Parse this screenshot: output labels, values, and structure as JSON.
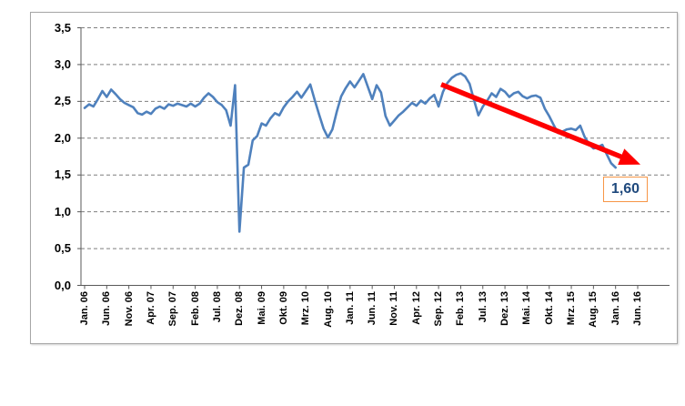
{
  "annotation": {
    "label": "1,60"
  },
  "chart_data": {
    "type": "line",
    "title": "",
    "grid": "dashed-horizontal",
    "legend": "none",
    "ylim": [
      0,
      3.5
    ],
    "y_ticks": [
      {
        "value": 0.0,
        "label": "0,0"
      },
      {
        "value": 0.5,
        "label": "0,5"
      },
      {
        "value": 1.0,
        "label": "1,0"
      },
      {
        "value": 1.5,
        "label": "1,5"
      },
      {
        "value": 2.0,
        "label": "2,0"
      },
      {
        "value": 2.5,
        "label": "2,5"
      },
      {
        "value": 3.0,
        "label": "3,0"
      },
      {
        "value": 3.5,
        "label": "3,5"
      }
    ],
    "x_tick_interval_months": 5,
    "x_tick_labels": [
      "Jan. 06",
      "Jun. 06",
      "Nov. 06",
      "Apr. 07",
      "Sep. 07",
      "Feb. 08",
      "Jul. 08",
      "Dez. 08",
      "Mai. 09",
      "Okt. 09",
      "Mrz. 10",
      "Aug. 10",
      "Jan. 11",
      "Jun. 11",
      "Nov. 11",
      "Apr. 12",
      "Sep. 12",
      "Feb. 13",
      "Jul. 13",
      "Dez. 13",
      "Mai. 14",
      "Okt. 14",
      "Mrz. 15",
      "Aug. 15",
      "Jan. 16",
      "Jun. 16"
    ],
    "series": [
      {
        "name": "monthly-values",
        "color": "#4f81bd",
        "start": "Jan. 06",
        "end": "Jan. 16",
        "interval": "monthly",
        "values": [
          2.41,
          2.46,
          2.43,
          2.53,
          2.64,
          2.56,
          2.66,
          2.6,
          2.53,
          2.48,
          2.45,
          2.42,
          2.34,
          2.32,
          2.36,
          2.33,
          2.4,
          2.43,
          2.4,
          2.46,
          2.44,
          2.47,
          2.45,
          2.43,
          2.47,
          2.43,
          2.47,
          2.55,
          2.61,
          2.56,
          2.49,
          2.45,
          2.38,
          2.17,
          2.72,
          0.73,
          1.6,
          1.64,
          1.97,
          2.03,
          2.2,
          2.17,
          2.27,
          2.34,
          2.31,
          2.42,
          2.5,
          2.56,
          2.63,
          2.55,
          2.64,
          2.73,
          2.52,
          2.32,
          2.13,
          2.01,
          2.12,
          2.36,
          2.57,
          2.68,
          2.77,
          2.69,
          2.78,
          2.87,
          2.7,
          2.53,
          2.72,
          2.62,
          2.3,
          2.17,
          2.24,
          2.31,
          2.36,
          2.42,
          2.48,
          2.44,
          2.51,
          2.47,
          2.54,
          2.59,
          2.43,
          2.63,
          2.75,
          2.82,
          2.86,
          2.88,
          2.84,
          2.74,
          2.52,
          2.31,
          2.43,
          2.51,
          2.61,
          2.56,
          2.67,
          2.63,
          2.56,
          2.61,
          2.63,
          2.57,
          2.54,
          2.57,
          2.58,
          2.55,
          2.4,
          2.3,
          2.18,
          2.07,
          2.09,
          2.12,
          2.13,
          2.11,
          2.17,
          2.02,
          1.92,
          1.86,
          1.88,
          1.91,
          1.78,
          1.66,
          1.6
        ]
      }
    ],
    "annotation": {
      "label": "1,60",
      "value": 1.6,
      "arrow_color": "#fe0000",
      "arrow_from_value": 2.73,
      "arrow_from_month": "Sep. 12",
      "box_border_color": "#f79646",
      "text_color": "#1f497d"
    },
    "colors": {
      "line": "#4f81bd",
      "gridline": "#7f7f7f",
      "axis": "#595959"
    }
  }
}
